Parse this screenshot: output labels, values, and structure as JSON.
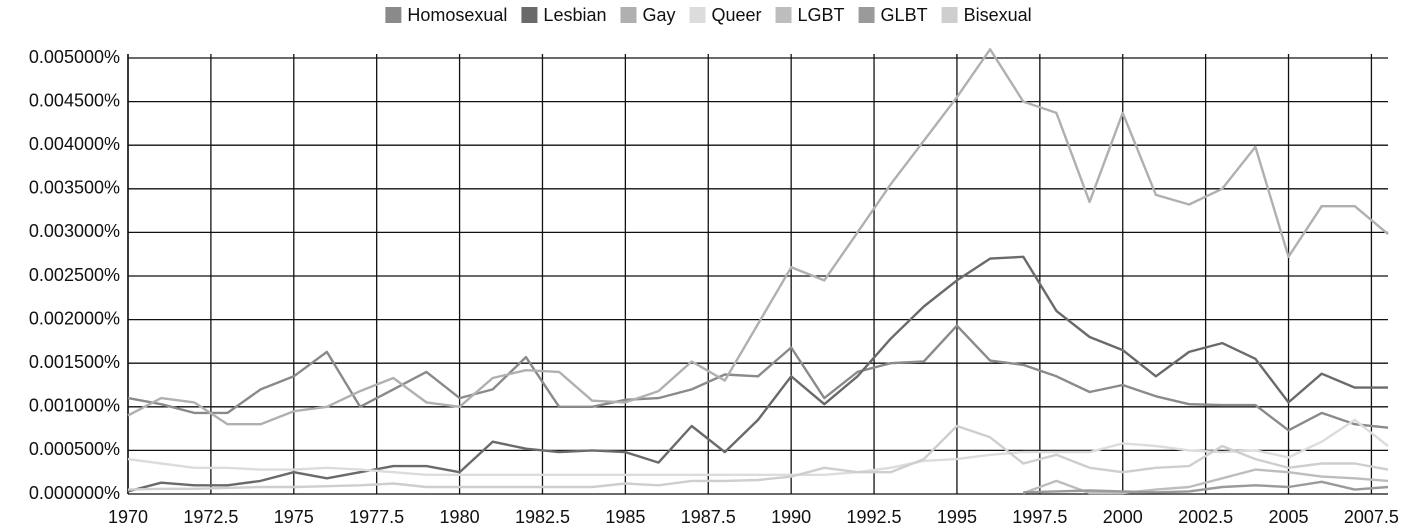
{
  "chart_data": {
    "type": "line",
    "x": [
      1970,
      1971,
      1972,
      1973,
      1974,
      1975,
      1976,
      1977,
      1978,
      1979,
      1980,
      1981,
      1982,
      1983,
      1984,
      1985,
      1986,
      1987,
      1988,
      1989,
      1990,
      1991,
      1992,
      1993,
      1994,
      1995,
      1996,
      1997,
      1998,
      1999,
      2000,
      2001,
      2002,
      2003,
      2004,
      2005,
      2006,
      2007,
      2008
    ],
    "series": [
      {
        "name": "Homosexual",
        "color": "#8a8a8a",
        "values": [
          0.0011,
          0.00103,
          0.00093,
          0.00093,
          0.0012,
          0.00135,
          0.00163,
          0.001,
          0.0012,
          0.0014,
          0.0011,
          0.0012,
          0.00157,
          0.001,
          0.001,
          0.00108,
          0.0011,
          0.0012,
          0.00137,
          0.00135,
          0.00168,
          0.0011,
          0.0014,
          0.0015,
          0.00152,
          0.00193,
          0.00153,
          0.00148,
          0.00135,
          0.00117,
          0.00125,
          0.00112,
          0.00103,
          0.00102,
          0.00102,
          0.00073,
          0.00093,
          0.0008,
          0.00076
        ]
      },
      {
        "name": "Lesbian",
        "color": "#6a6a6a",
        "values": [
          3e-05,
          0.00013,
          0.0001,
          0.0001,
          0.00015,
          0.00025,
          0.00018,
          0.00025,
          0.00032,
          0.00032,
          0.00025,
          0.0006,
          0.00052,
          0.00048,
          0.0005,
          0.00048,
          0.00036,
          0.00078,
          0.00048,
          0.00085,
          0.00135,
          0.00103,
          0.00135,
          0.00178,
          0.00215,
          0.00245,
          0.0027,
          0.00272,
          0.0021,
          0.0018,
          0.00165,
          0.00135,
          0.00163,
          0.00173,
          0.00155,
          0.00105,
          0.00138,
          0.00122,
          0.00122
        ]
      },
      {
        "name": "Gay",
        "color": "#b0b0b0",
        "values": [
          0.0009,
          0.0011,
          0.00105,
          0.0008,
          0.0008,
          0.00095,
          0.001,
          0.00118,
          0.00133,
          0.00105,
          0.001,
          0.00133,
          0.00142,
          0.0014,
          0.00107,
          0.00105,
          0.00118,
          0.00152,
          0.0013,
          0.00195,
          0.0026,
          0.00245,
          0.003,
          0.00355,
          0.00405,
          0.00455,
          0.0051,
          0.0045,
          0.00437,
          0.00335,
          0.00437,
          0.00343,
          0.00332,
          0.0035,
          0.00398,
          0.00272,
          0.0033,
          0.0033,
          0.00298
        ]
      },
      {
        "name": "Queer",
        "color": "#dcdcdc",
        "values": [
          0.0004,
          0.00035,
          0.0003,
          0.0003,
          0.00028,
          0.00028,
          0.0003,
          0.00028,
          0.00025,
          0.00022,
          0.00022,
          0.00022,
          0.00022,
          0.00022,
          0.00022,
          0.00022,
          0.00022,
          0.00022,
          0.00022,
          0.00022,
          0.00022,
          0.00022,
          0.00025,
          0.0003,
          0.00038,
          0.0004,
          0.00045,
          0.00048,
          0.00048,
          0.00048,
          0.00058,
          0.00055,
          0.0005,
          0.00048,
          0.0005,
          0.00042,
          0.0006,
          0.00085,
          0.00055
        ]
      },
      {
        "name": "LGBT",
        "color": "#bdbdbd",
        "values": [
          null,
          null,
          null,
          null,
          null,
          null,
          null,
          null,
          null,
          null,
          null,
          null,
          null,
          null,
          null,
          null,
          null,
          null,
          null,
          null,
          null,
          null,
          null,
          null,
          null,
          null,
          null,
          1e-05,
          0.00015,
          1e-05,
          1e-05,
          5e-05,
          8e-05,
          0.00018,
          0.00028,
          0.00025,
          0.0002,
          0.00018,
          0.00015
        ]
      },
      {
        "name": "GLBT",
        "color": "#9a9a9a",
        "values": [
          null,
          null,
          null,
          null,
          null,
          null,
          null,
          null,
          null,
          null,
          null,
          null,
          null,
          null,
          null,
          null,
          null,
          null,
          null,
          null,
          null,
          null,
          null,
          null,
          null,
          null,
          null,
          2e-05,
          3e-05,
          4e-05,
          3e-05,
          2e-05,
          3e-05,
          8e-05,
          0.0001,
          8e-05,
          0.00014,
          5e-05,
          8e-05
        ]
      },
      {
        "name": "Bisexual",
        "color": "#cecece",
        "values": [
          5e-05,
          6e-05,
          6e-05,
          7e-05,
          8e-05,
          8e-05,
          9e-05,
          0.0001,
          0.00012,
          8e-05,
          8e-05,
          8e-05,
          8e-05,
          8e-05,
          8e-05,
          0.00012,
          0.0001,
          0.00015,
          0.00015,
          0.00016,
          0.0002,
          0.0003,
          0.00025,
          0.00025,
          0.0004,
          0.00078,
          0.00065,
          0.00035,
          0.00045,
          0.0003,
          0.00025,
          0.0003,
          0.00032,
          0.00055,
          0.0004,
          0.0003,
          0.00035,
          0.00035,
          0.00028
        ]
      }
    ],
    "xlim": [
      1970,
      2008
    ],
    "xticks": [
      1970,
      1972.5,
      1975,
      1977.5,
      1980,
      1982.5,
      1985,
      1987.5,
      1990,
      1992.5,
      1995,
      1997.5,
      2000,
      2002.5,
      2005,
      2007.5
    ],
    "ylim": [
      0,
      0.005
    ],
    "yticks": [
      {
        "value": 0,
        "label": "0.000000%"
      },
      {
        "value": 0.0005,
        "label": "0.000500%"
      },
      {
        "value": 0.001,
        "label": "0.001000%"
      },
      {
        "value": 0.0015,
        "label": "0.001500%"
      },
      {
        "value": 0.002,
        "label": "0.002000%"
      },
      {
        "value": 0.0025,
        "label": "0.002500%"
      },
      {
        "value": 0.003,
        "label": "0.003000%"
      },
      {
        "value": 0.0035,
        "label": "0.003500%"
      },
      {
        "value": 0.004,
        "label": "0.004000%"
      },
      {
        "value": 0.0045,
        "label": "0.004500%"
      },
      {
        "value": 0.005,
        "label": "0.005000%"
      }
    ],
    "grid": true,
    "legend": "top"
  }
}
